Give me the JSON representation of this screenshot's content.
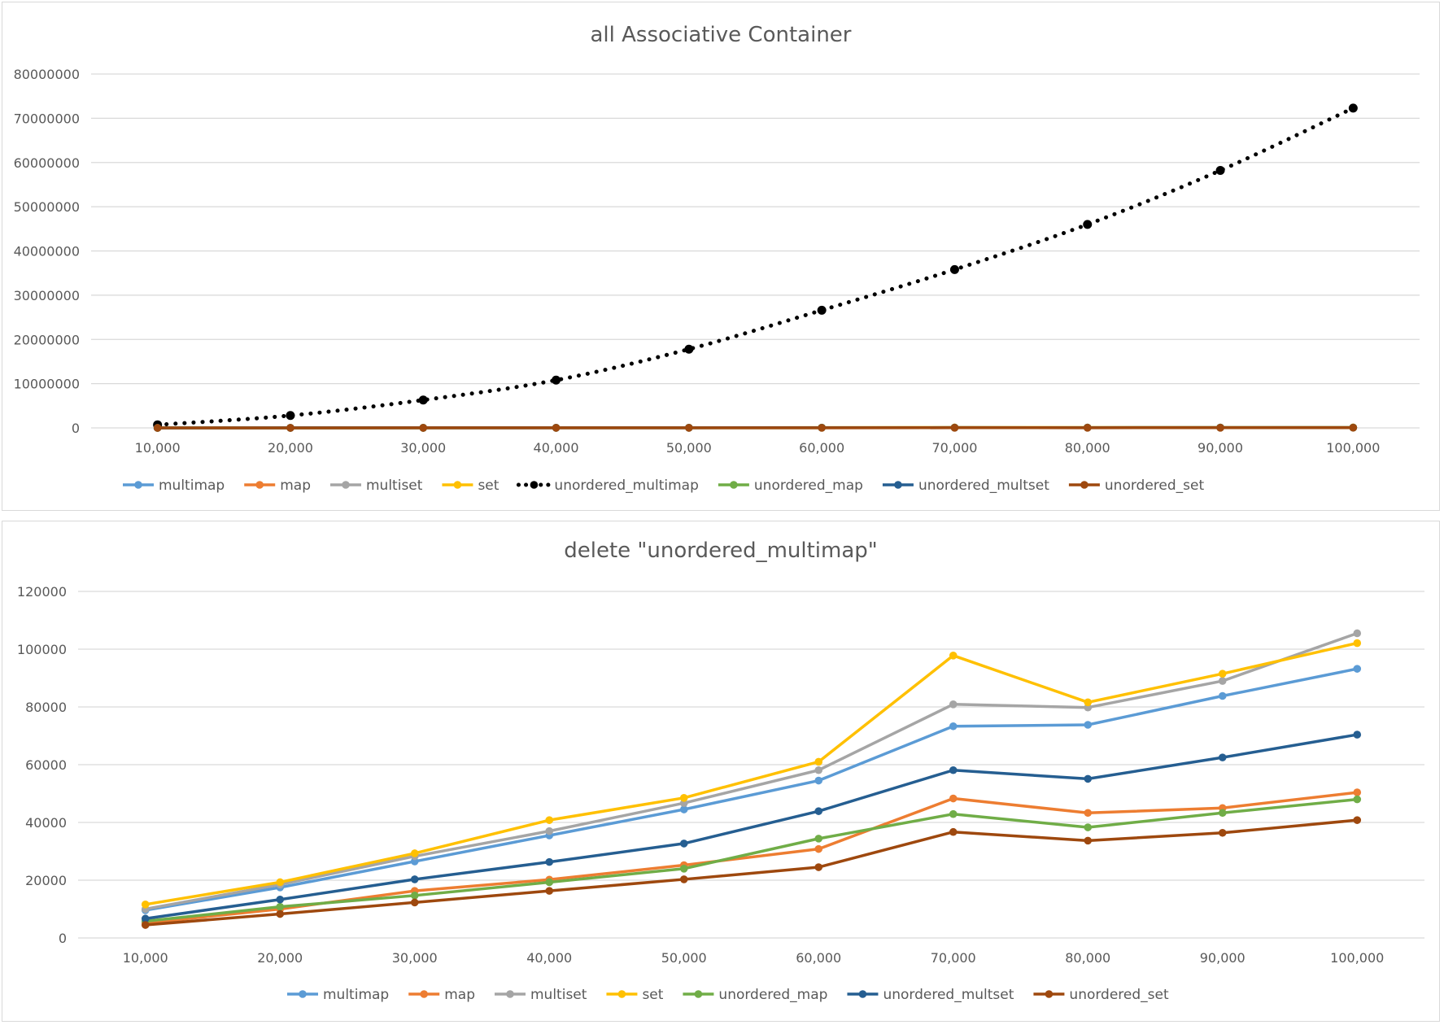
{
  "colors": {
    "multimap": "#5b9bd5",
    "map": "#ed7d31",
    "multiset": "#a5a5a5",
    "set": "#ffc000",
    "unordered_multimap": "#000000",
    "unordered_map": "#70ad47",
    "unordered_multset": "#255e91",
    "unordered_set": "#9e480e",
    "gridline": "#d9d9d9",
    "text": "#595959"
  },
  "chart_data": [
    {
      "type": "line",
      "title": "all Associative Container",
      "categories": [
        "10,000",
        "20,000",
        "30,000",
        "40,000",
        "50,000",
        "60,000",
        "70,000",
        "80,000",
        "90,000",
        "100,000"
      ],
      "ylim": [
        0,
        80000000
      ],
      "yticks": [
        "0",
        "10000000",
        "20000000",
        "30000000",
        "40000000",
        "50000000",
        "60000000",
        "70000000",
        "80000000"
      ],
      "grid": true,
      "legend": "bottom",
      "series": [
        {
          "name": "multimap",
          "key": "multimap",
          "dashed": false,
          "values": [
            9600,
            17500,
            26500,
            35500,
            44500,
            54500,
            73300,
            73800,
            83800,
            93200
          ]
        },
        {
          "name": "map",
          "key": "map",
          "dashed": false,
          "values": [
            5200,
            10000,
            16300,
            20200,
            25200,
            30800,
            48300,
            43300,
            45000,
            50400
          ]
        },
        {
          "name": "multiset",
          "key": "multiset",
          "dashed": false,
          "values": [
            10000,
            18500,
            28300,
            37000,
            46700,
            58100,
            80900,
            79800,
            89000,
            105500
          ]
        },
        {
          "name": "set",
          "key": "set",
          "dashed": false,
          "values": [
            11600,
            19300,
            29300,
            40800,
            48500,
            61000,
            97800,
            81600,
            91500,
            102100
          ]
        },
        {
          "name": "unordered_multimap",
          "key": "unordered_multimap",
          "dashed": true,
          "values": [
            700000,
            2800000,
            6300000,
            10800000,
            17800000,
            26600000,
            35800000,
            46000000,
            58200000,
            72300000
          ]
        },
        {
          "name": "unordered_map",
          "key": "unordered_map",
          "dashed": false,
          "values": [
            5800,
            10800,
            14700,
            19300,
            24000,
            34400,
            42900,
            38300,
            43300,
            48000
          ]
        },
        {
          "name": "unordered_multset",
          "key": "unordered_multset",
          "dashed": false,
          "values": [
            6700,
            13300,
            20300,
            26300,
            32700,
            43900,
            58100,
            55100,
            62500,
            70400
          ]
        },
        {
          "name": "unordered_set",
          "key": "unordered_set",
          "dashed": false,
          "values": [
            4500,
            8300,
            12300,
            16300,
            20300,
            24500,
            36700,
            33700,
            36400,
            40800
          ]
        }
      ]
    },
    {
      "type": "line",
      "title": "delete \"unordered_multimap\"",
      "categories": [
        "10,000",
        "20,000",
        "30,000",
        "40,000",
        "50,000",
        "60,000",
        "70,000",
        "80,000",
        "90,000",
        "100,000"
      ],
      "ylim": [
        0,
        120000
      ],
      "yticks": [
        "0",
        "20000",
        "40000",
        "60000",
        "80000",
        "100000",
        "120000"
      ],
      "grid": true,
      "legend": "bottom",
      "series": [
        {
          "name": "multimap",
          "key": "multimap",
          "dashed": false,
          "values": [
            9600,
            17500,
            26500,
            35500,
            44500,
            54500,
            73300,
            73800,
            83800,
            93200
          ]
        },
        {
          "name": "map",
          "key": "map",
          "dashed": false,
          "values": [
            5200,
            10000,
            16300,
            20200,
            25200,
            30800,
            48300,
            43300,
            45000,
            50400
          ]
        },
        {
          "name": "multiset",
          "key": "multiset",
          "dashed": false,
          "values": [
            10000,
            18500,
            28300,
            37000,
            46700,
            58100,
            80900,
            79800,
            89000,
            105500
          ]
        },
        {
          "name": "set",
          "key": "set",
          "dashed": false,
          "values": [
            11600,
            19300,
            29300,
            40800,
            48500,
            61000,
            97800,
            81600,
            91500,
            102100
          ]
        },
        {
          "name": "unordered_map",
          "key": "unordered_map",
          "dashed": false,
          "values": [
            5800,
            10800,
            14700,
            19300,
            24000,
            34400,
            42900,
            38300,
            43300,
            48000
          ]
        },
        {
          "name": "unordered_multset",
          "key": "unordered_multset",
          "dashed": false,
          "values": [
            6700,
            13300,
            20300,
            26300,
            32700,
            43900,
            58100,
            55100,
            62500,
            70400
          ]
        },
        {
          "name": "unordered_set",
          "key": "unordered_set",
          "dashed": false,
          "values": [
            4500,
            8300,
            12300,
            16300,
            20300,
            24500,
            36700,
            33700,
            36400,
            40800
          ]
        }
      ]
    }
  ]
}
